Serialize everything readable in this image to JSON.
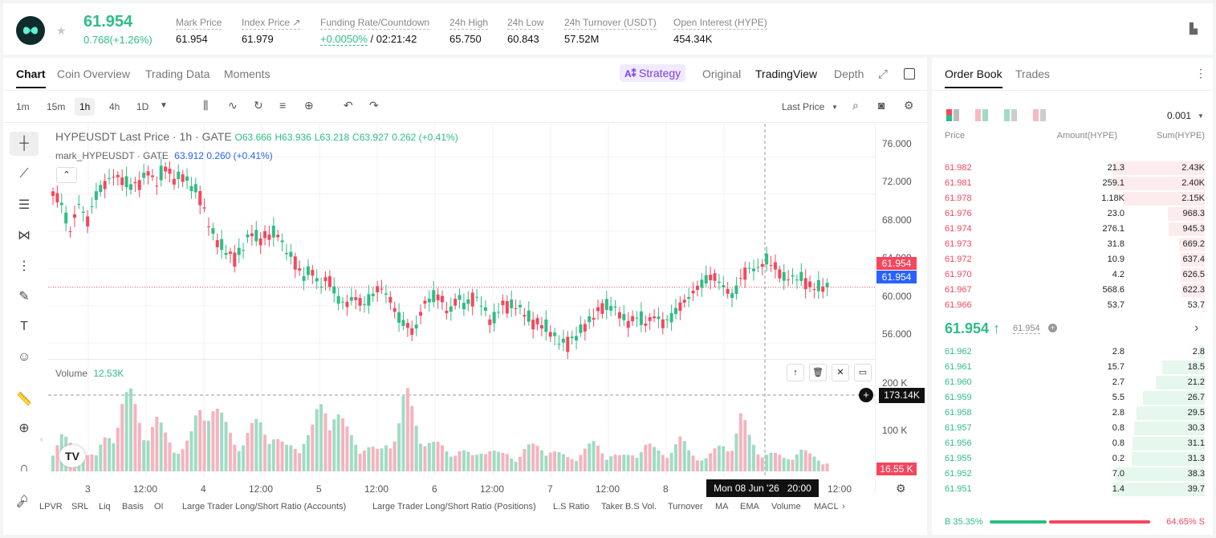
{
  "header": {
    "price": "61.954",
    "change": "0.768(+1.26%)",
    "stats": [
      {
        "label": "Mark Price",
        "value": "61.954"
      },
      {
        "label": "Index Price ↗",
        "value": "61.979"
      },
      {
        "label": "Funding Rate/Countdown",
        "value": "+0.0050%",
        "value2": " / 02:21:42"
      },
      {
        "label": "24h High",
        "value": "65.750"
      },
      {
        "label": "24h Low",
        "value": "60.843"
      },
      {
        "label": "24h Turnover (USDT)",
        "value": "57.52M"
      },
      {
        "label": "Open Interest (HYPE)",
        "value": "454.34K"
      }
    ]
  },
  "chart_tabs": [
    "Chart",
    "Coin Overview",
    "Trading Data",
    "Moments"
  ],
  "view_tabs": {
    "strategy": "Strategy",
    "original": "Original",
    "tradingview": "TradingView",
    "depth": "Depth"
  },
  "intervals": [
    "1m",
    "15m",
    "1h",
    "4h",
    "1D"
  ],
  "price_type": "Last Price",
  "legend": {
    "line1": "HYPEUSDT Last Price · 1h · GATE",
    "o": "O63.666",
    "h": "H63.936",
    "l": "L63.218",
    "c": "C63.927",
    "chg": "0.262 (+0.41%)",
    "line2": "mark_HYPEUSDT · GATE",
    "mark_val": "63.912",
    "mark_chg": "0.260 (+0.41%)",
    "volume_label": "Volume",
    "volume_value": "12.53K"
  },
  "y_axis": [
    "76.000",
    "72.000",
    "68.000",
    "64.000",
    "60.000",
    "56.000"
  ],
  "price_tag_red": "61.954",
  "price_tag_blue": "61.954",
  "vol_axis": [
    "200 K",
    "100 K"
  ],
  "vol_cursor": "173.14K",
  "vol_tag": "16.55 K",
  "x_axis": [
    "3",
    "12:00",
    "4",
    "12:00",
    "5",
    "12:00",
    "6",
    "12:00",
    "7",
    "12:00",
    "8",
    "12:00"
  ],
  "crosshair_time": "Mon 08 Jun '26   20:00",
  "bottom_tabs": [
    "LPVR",
    "SRL",
    "Liq",
    "Basis",
    "OI",
    "Large Trader Long/Short Ratio (Accounts)",
    "Large Trader Long/Short Ratio (Positions)",
    "L.S Ratio",
    "Taker B.S Vol.",
    "Turnover",
    "MA",
    "EMA",
    "Volume",
    "MACL"
  ],
  "chart_data": {
    "type": "candlestick",
    "ylim": [
      53,
      78
    ],
    "close_path": [
      72,
      71,
      68,
      71,
      69,
      72,
      73,
      74,
      73.5,
      73,
      73,
      74.5,
      73,
      75,
      73.5,
      74,
      73,
      72,
      69,
      67,
      66,
      65,
      66,
      68,
      67,
      67.5,
      68,
      66,
      65,
      63,
      64,
      62,
      63,
      61,
      60,
      61,
      60,
      61,
      62,
      61,
      59,
      58,
      57,
      60,
      61,
      61,
      59,
      61,
      60,
      61,
      60,
      58,
      60,
      60,
      60,
      59,
      58,
      58,
      57,
      56,
      56,
      57,
      58,
      59,
      60,
      60,
      59,
      58,
      59,
      58,
      59,
      58,
      59,
      60,
      61,
      62,
      63,
      63,
      62,
      61,
      63,
      64,
      64,
      65,
      64,
      63,
      63,
      63,
      62,
      62,
      62
    ],
    "volume_path": [
      60,
      80,
      55,
      40,
      45,
      30,
      70,
      95,
      150,
      160,
      120,
      90,
      110,
      80,
      60,
      50,
      70,
      140,
      165,
      130,
      100,
      80,
      60,
      90,
      110,
      100,
      70,
      50,
      60,
      70,
      80,
      140,
      160,
      130,
      90,
      70,
      60,
      50,
      40,
      75,
      90,
      170,
      120,
      80,
      60,
      55,
      45,
      50,
      40,
      30,
      60,
      45,
      35,
      40,
      30,
      50,
      55,
      60,
      45,
      35,
      30,
      40,
      50,
      60,
      45,
      40,
      30,
      35,
      50,
      60,
      45,
      40,
      55,
      70,
      40,
      35,
      30,
      45,
      60,
      65,
      120,
      70,
      50,
      40,
      35,
      30,
      40,
      45,
      35,
      30,
      20
    ],
    "volume_axis_max": 220
  },
  "orderbook": {
    "tabs": [
      "Order Book",
      "Trades"
    ],
    "precision": "0.001",
    "headers": [
      "Price",
      "Amount(HYPE)",
      "Sum(HYPE)"
    ],
    "asks": [
      {
        "price": "61.982",
        "amount": "21.3",
        "sum": "2.43K",
        "depth": 1.0
      },
      {
        "price": "61.981",
        "amount": "259.1",
        "sum": "2.40K",
        "depth": 0.99
      },
      {
        "price": "61.978",
        "amount": "1.18K",
        "sum": "2.15K",
        "depth": 0.885
      },
      {
        "price": "61.976",
        "amount": "23.0",
        "sum": "968.3",
        "depth": 0.4
      },
      {
        "price": "61.974",
        "amount": "276.1",
        "sum": "945.3",
        "depth": 0.39
      },
      {
        "price": "61.973",
        "amount": "31.8",
        "sum": "669.2",
        "depth": 0.275
      },
      {
        "price": "61.972",
        "amount": "10.9",
        "sum": "637.4",
        "depth": 0.262
      },
      {
        "price": "61.970",
        "amount": "4.2",
        "sum": "626.5",
        "depth": 0.258
      },
      {
        "price": "61.967",
        "amount": "568.6",
        "sum": "622.3",
        "depth": 0.256
      },
      {
        "price": "61.966",
        "amount": "53.7",
        "sum": "53.7",
        "depth": 0.022
      }
    ],
    "mid_price": "61.954",
    "mid_mark": "61.954",
    "bids": [
      {
        "price": "61.962",
        "amount": "2.8",
        "sum": "2.8",
        "depth": 0.07
      },
      {
        "price": "61.961",
        "amount": "15.7",
        "sum": "18.5",
        "depth": 0.465
      },
      {
        "price": "61.960",
        "amount": "2.7",
        "sum": "21.2",
        "depth": 0.534
      },
      {
        "price": "61.959",
        "amount": "5.5",
        "sum": "26.7",
        "depth": 0.672
      },
      {
        "price": "61.958",
        "amount": "2.8",
        "sum": "29.5",
        "depth": 0.743
      },
      {
        "price": "61.957",
        "amount": "0.8",
        "sum": "30.3",
        "depth": 0.763
      },
      {
        "price": "61.956",
        "amount": "0.8",
        "sum": "31.1",
        "depth": 0.783
      },
      {
        "price": "61.955",
        "amount": "0.2",
        "sum": "31.3",
        "depth": 0.788
      },
      {
        "price": "61.952",
        "amount": "7.0",
        "sum": "38.3",
        "depth": 0.965
      },
      {
        "price": "61.951",
        "amount": "1.4",
        "sum": "39.7",
        "depth": 1.0
      }
    ],
    "buy_ratio": "B 35.35%",
    "sell_ratio": "64.65% S",
    "buy_fraction": 0.3535
  },
  "colors": {
    "up": "#2ebd85",
    "down": "#f6465d",
    "accent": "#7b3fe4",
    "blue": "#2962ff"
  }
}
